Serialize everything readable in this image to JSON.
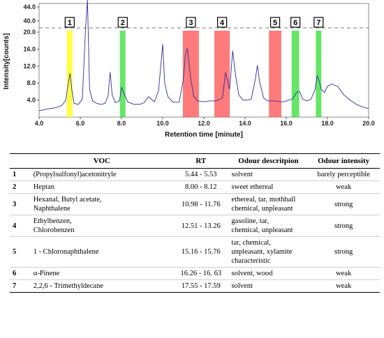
{
  "chart_data": {
    "type": "line",
    "xlabel": "Retention time [minute]",
    "ylabel": "Intensity[counts]",
    "xlim": [
      4.0,
      20.0
    ],
    "ylim_lower": [
      0,
      21
    ],
    "ylim_upper": [
      38,
      45
    ],
    "x_ticks": [
      "4.0",
      "6.0",
      "8.0",
      "10.0",
      "12.0",
      "14.0",
      "16.0",
      "18.0",
      "20.0"
    ],
    "y_ticks_lower": [
      "4.0",
      "8.0",
      "12.0",
      "16.0",
      "20.0"
    ],
    "y_ticks_upper": [
      "40.0",
      "44.0"
    ],
    "grid": false,
    "line_color": "#2b2f9e",
    "x": [
      4.0,
      4.4,
      4.8,
      5.1,
      5.3,
      5.4,
      5.5,
      5.6,
      5.7,
      5.9,
      6.1,
      6.25,
      6.35,
      6.45,
      6.6,
      6.8,
      7.0,
      7.2,
      7.35,
      7.45,
      7.55,
      7.7,
      7.9,
      8.0,
      8.1,
      8.3,
      8.6,
      8.9,
      9.1,
      9.3,
      9.5,
      9.6,
      9.8,
      10.0,
      10.1,
      10.25,
      10.5,
      10.8,
      11.0,
      11.1,
      11.2,
      11.35,
      11.5,
      11.7,
      12.0,
      12.3,
      12.6,
      12.9,
      13.05,
      13.15,
      13.25,
      13.4,
      13.55,
      13.7,
      13.9,
      14.1,
      14.3,
      14.5,
      14.6,
      14.7,
      14.9,
      15.1,
      15.3,
      15.5,
      15.7,
      15.9,
      16.1,
      16.3,
      16.5,
      16.65,
      16.8,
      17.0,
      17.2,
      17.4,
      17.5,
      17.6,
      17.7,
      17.85,
      18.0,
      18.2,
      18.5,
      18.8,
      19.1,
      19.4,
      19.7,
      20.0
    ],
    "y": [
      1.5,
      1.9,
      2.2,
      2.7,
      4.0,
      7.5,
      10.3,
      6.0,
      3.2,
      3.0,
      4.2,
      20.5,
      46.0,
      6.5,
      3.8,
      3.2,
      3.0,
      3.2,
      5.0,
      10.6,
      5.2,
      3.4,
      3.8,
      7.0,
      5.8,
      3.6,
      3.0,
      3.0,
      3.4,
      4.8,
      4.0,
      3.6,
      6.2,
      17.2,
      8.0,
      4.8,
      3.5,
      3.5,
      8.8,
      14.5,
      16.2,
      9.5,
      5.0,
      3.8,
      3.6,
      3.8,
      3.8,
      4.5,
      10.5,
      8.5,
      6.5,
      15.6,
      9.5,
      5.2,
      4.0,
      4.0,
      4.2,
      9.0,
      12.2,
      8.5,
      4.5,
      3.8,
      3.8,
      3.8,
      3.6,
      3.6,
      4.0,
      4.2,
      5.8,
      6.0,
      4.2,
      3.8,
      4.2,
      6.5,
      9.8,
      8.5,
      6.5,
      5.8,
      7.2,
      7.8,
      7.2,
      5.2,
      4.0,
      3.0,
      2.4,
      2.0
    ],
    "regions": [
      {
        "label": "1",
        "x0": 5.44,
        "x1": 5.53,
        "color": "#ffff00"
      },
      {
        "label": "2",
        "x0": 8.0,
        "x1": 8.12,
        "color": "#33dd33"
      },
      {
        "label": "3",
        "x0": 10.98,
        "x1": 11.76,
        "color": "#ff4d4d"
      },
      {
        "label": "4",
        "x0": 12.51,
        "x1": 13.26,
        "color": "#ff4d4d"
      },
      {
        "label": "5",
        "x0": 15.16,
        "x1": 15.76,
        "color": "#ff4d4d"
      },
      {
        "label": "6",
        "x0": 16.26,
        "x1": 16.63,
        "color": "#33dd33"
      },
      {
        "label": "7",
        "x0": 17.55,
        "x1": 17.59,
        "color": "#33dd33"
      }
    ]
  },
  "table": {
    "headers": {
      "no": "",
      "voc": "VOC",
      "rt": "RT",
      "odour": "Odour descritpion",
      "intensity": "Odour intensity"
    },
    "rows": [
      {
        "no": "1",
        "voc": [
          "(Propylsulfonyl)acetonitryle"
        ],
        "rt": "5.44 - 5.53",
        "odour": [
          "solvent"
        ],
        "intensity": "barely perceptible"
      },
      {
        "no": "2",
        "voc": [
          "Heptan"
        ],
        "rt": "8.00 - 8.12",
        "odour": [
          "sweet ethereal"
        ],
        "intensity": "weak"
      },
      {
        "no": "3",
        "voc": [
          "Hexanal, Butyl acetate,",
          "Naphthalene"
        ],
        "rt": "10.98 - 11.76",
        "odour": [
          "ethereal, tar, mothball",
          "chemical, unpleasant"
        ],
        "intensity": "strong"
      },
      {
        "no": "4",
        "voc": [
          "Ethylbenzen,",
          "Chlorobenzen"
        ],
        "rt": "12.51 - 13.26",
        "odour": [
          "gasoline, tar,",
          "chemical, unpleasant"
        ],
        "intensity": "strong"
      },
      {
        "no": "5",
        "voc": [
          "1 - Chloronaphthalene"
        ],
        "rt": "15.16 - 15.76",
        "odour": [
          "tar, chemical,",
          "unpleasant, xylamite",
          "characteristic"
        ],
        "intensity": "strong"
      },
      {
        "no": "6",
        "voc": [
          "α-Pinene"
        ],
        "rt": "16.26 - 16. 63",
        "odour": [
          "solvent, wood"
        ],
        "intensity": "weak"
      },
      {
        "no": "7",
        "voc": [
          "2,2,6 - Trimethyldecane"
        ],
        "rt": "17.55 - 17.59",
        "odour": [
          "solvent"
        ],
        "intensity": "weak"
      }
    ]
  }
}
